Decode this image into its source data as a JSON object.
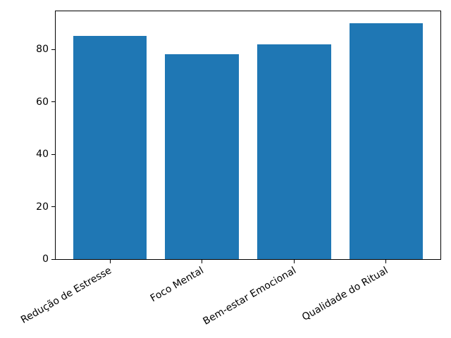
{
  "chart_data": {
    "type": "bar",
    "title": "",
    "xlabel": "",
    "ylabel": "",
    "categories": [
      "Redução de Estresse",
      "Foco Mental",
      "Bem-estar Emocional",
      "Qualidade do Ritual"
    ],
    "values": [
      85,
      78,
      82,
      90
    ],
    "yticks": [
      0,
      20,
      40,
      60,
      80
    ],
    "ylim": [
      0,
      94.5
    ],
    "bar_color": "#1f77b4",
    "axis_color": "#000000",
    "background_color": "#ffffff",
    "bar_width_fraction": 0.8,
    "x_margin_fraction": 0.05,
    "xtick_rotation_deg": 30,
    "grid": false,
    "legend": "none"
  }
}
